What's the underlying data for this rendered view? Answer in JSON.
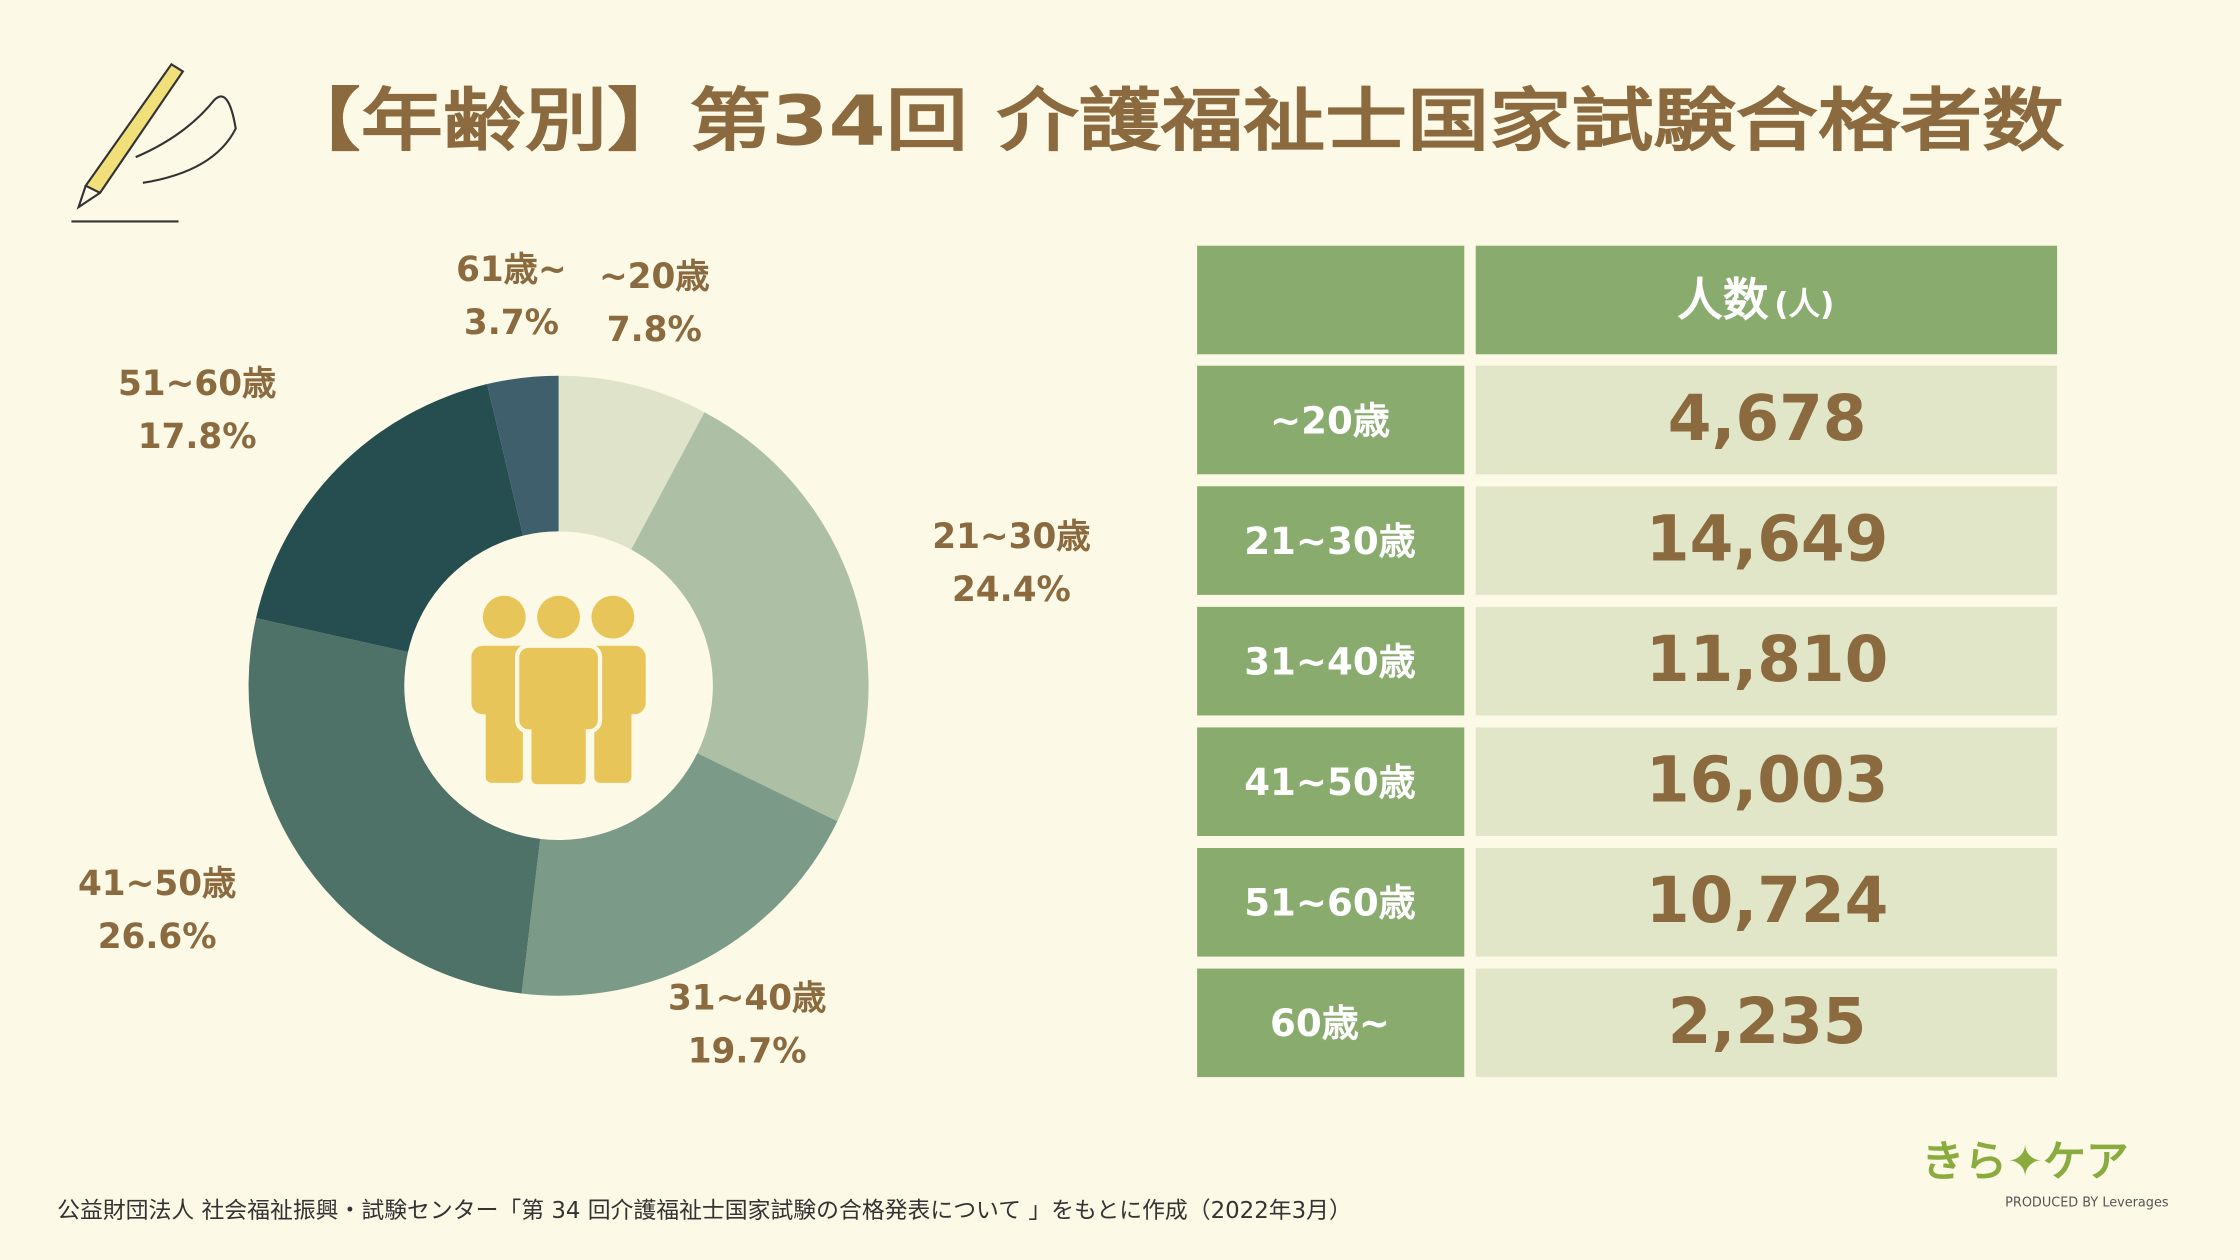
{
  "chart_data": {
    "type": "pie",
    "title": "【年齢別】第34回 介護福祉士国家試験合格者数",
    "categories": [
      "~20歳",
      "21~30歳",
      "31~40歳",
      "41~50歳",
      "51~60歳",
      "61歳~"
    ],
    "values": [
      7.8,
      24.4,
      19.7,
      26.6,
      17.8,
      3.7
    ],
    "value_labels": [
      "7.8%",
      "24.4%",
      "19.7%",
      "26.6%",
      "17.8%",
      "3.7%"
    ],
    "colors": [
      "#dfe3c9",
      "#adc0a6",
      "#7b9a88",
      "#4e7268",
      "#264d4f",
      "#3e5f6b"
    ]
  },
  "table": {
    "header": [
      "人数",
      "(人)"
    ],
    "rows": [
      [
        "~20歳",
        "4,678"
      ],
      [
        "21~30歳",
        "14,649"
      ],
      [
        "31~40歳",
        "11,810"
      ],
      [
        "41~50歳",
        "16,003"
      ],
      [
        "51~60歳",
        "10,724"
      ],
      [
        "60歳~",
        "2,235"
      ]
    ]
  },
  "footnote": "公益財団法人 社会福祉振興・試験センター「第 34 回介護福祉士国家試験の合格発表について 」をもとに作成（2022年3月）",
  "logo": {
    "name": "きら✦ケア",
    "credit": "PRODUCED BY Leverages"
  }
}
